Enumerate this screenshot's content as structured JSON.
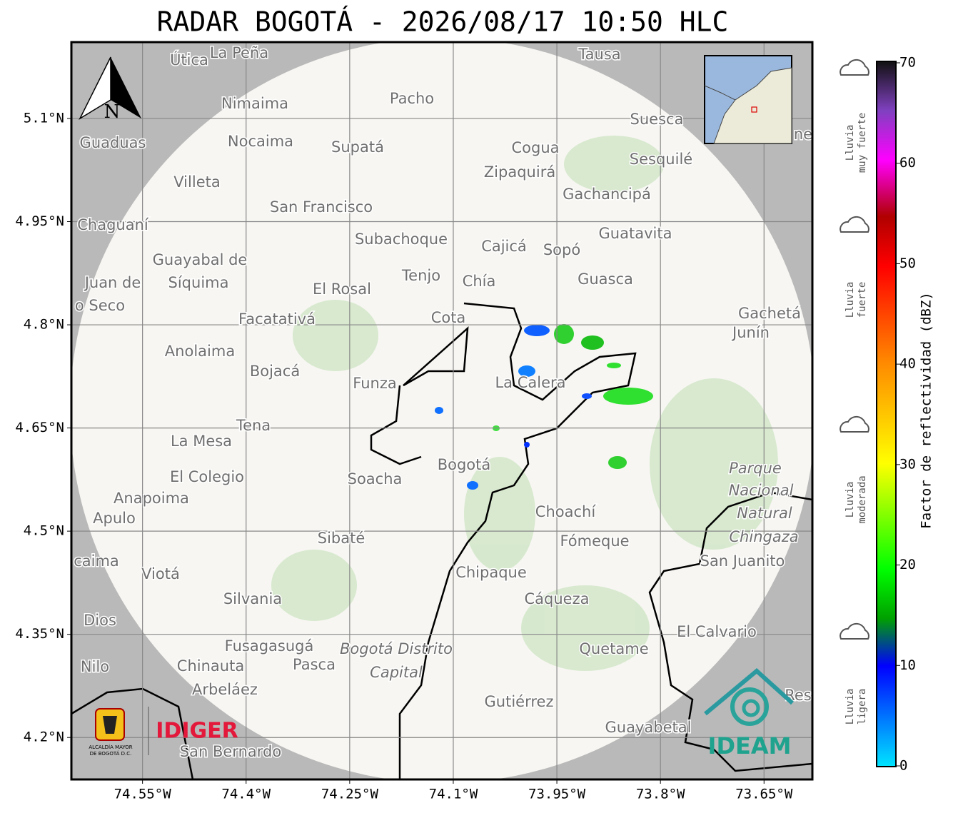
{
  "title": "RADAR BOGOTÁ - 2026/08/17 10:50 HLC",
  "map": {
    "lon_range": [
      -74.653,
      -73.58
    ],
    "lat_range": [
      4.139,
      5.211
    ],
    "lon_ticks": [
      {
        "value": -74.55,
        "label": "74.55°W"
      },
      {
        "value": -74.4,
        "label": "74.4°W"
      },
      {
        "value": -74.25,
        "label": "74.25°W"
      },
      {
        "value": -74.1,
        "label": "74.1°W"
      },
      {
        "value": -73.95,
        "label": "73.95°W"
      },
      {
        "value": -73.8,
        "label": "73.8°W"
      },
      {
        "value": -73.65,
        "label": "73.65°W"
      }
    ],
    "lat_ticks": [
      {
        "value": 5.1,
        "label": "5.1°N"
      },
      {
        "value": 4.95,
        "label": "4.95°N"
      },
      {
        "value": 4.8,
        "label": "4.8°N"
      },
      {
        "value": 4.65,
        "label": "4.65°N"
      },
      {
        "value": 4.5,
        "label": "4.5°N"
      },
      {
        "value": 4.35,
        "label": "4.35°N"
      },
      {
        "value": 4.2,
        "label": "4.2°N"
      }
    ],
    "north": "N",
    "places": [
      "Útica",
      "La Peña",
      "Tausa",
      "Pacho",
      "Nimaima",
      "Suesca",
      "Guaduas",
      "Nocaima",
      "Supatá",
      "Cogua",
      "Sesquilé",
      "Zipaquirá",
      "Villeta",
      "Gachancipá",
      "San Francisco",
      "Chaguaní",
      "Guatavita",
      "Subachoque",
      "Cajicá",
      "Sopó",
      "Guayabal de",
      "Síquima",
      "Tenjo",
      "Chía",
      "Guasca",
      "Juan de",
      "El Rosal",
      "o Seco",
      "Cota",
      "Facatativá",
      "Gachetá",
      "Junín",
      "Anolaima",
      "Bojacá",
      "Funza",
      "La Calera",
      "Tena",
      "La Mesa",
      "El Colegio",
      "Soacha",
      "Bogotá",
      "Parque",
      "Nacional",
      "Natural",
      "Chingaza",
      "Anapoima",
      "Apulo",
      "Choachí",
      "Fómeque",
      "Sibaté",
      "San Juanito",
      "caima",
      "Viotá",
      "Chipaque",
      "Silvania",
      "Cáqueza",
      "Dios",
      "El Calvario",
      "Fusagasugá",
      "Bogotá Distrito",
      "Capital",
      "Quetame",
      "Nilo",
      "Chinauta",
      "Pasca",
      "Arbeláez",
      "Gutiérrez",
      "Res",
      "Guayabetal",
      "San Bernardo",
      "ne"
    ]
  },
  "colorbar": {
    "label": "Factor de reflectividad (dBZ)",
    "range": [
      0,
      70
    ],
    "ticks": [
      0,
      10,
      20,
      30,
      40,
      50,
      60,
      70
    ]
  },
  "rain_levels": [
    [
      "Lluvia",
      "muy fuerte"
    ],
    [
      "Lluvia",
      "fuerte"
    ],
    [
      "Lluvia",
      "moderada"
    ],
    [
      "Lluvia",
      "ligera"
    ]
  ],
  "logos": {
    "alcaldia": [
      "ALCALDÍA MAYOR",
      "DE BOGOTÁ D.C."
    ],
    "idiger": "IDIGER",
    "ideam": "IDEAM"
  }
}
